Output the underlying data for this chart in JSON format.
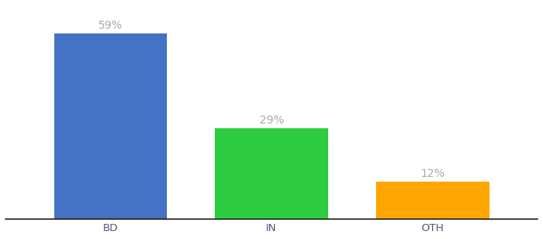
{
  "categories": [
    "BD",
    "IN",
    "OTH"
  ],
  "values": [
    59,
    29,
    12
  ],
  "labels": [
    "59%",
    "29%",
    "12%"
  ],
  "bar_colors": [
    "#4472C4",
    "#2ECC40",
    "#FFA500"
  ],
  "label_color": "#aaaaaa",
  "ylim": [
    0,
    68
  ],
  "bar_width": 0.7,
  "background_color": "#ffffff",
  "label_fontsize": 10,
  "tick_fontsize": 9.5,
  "tick_color": "#555577"
}
